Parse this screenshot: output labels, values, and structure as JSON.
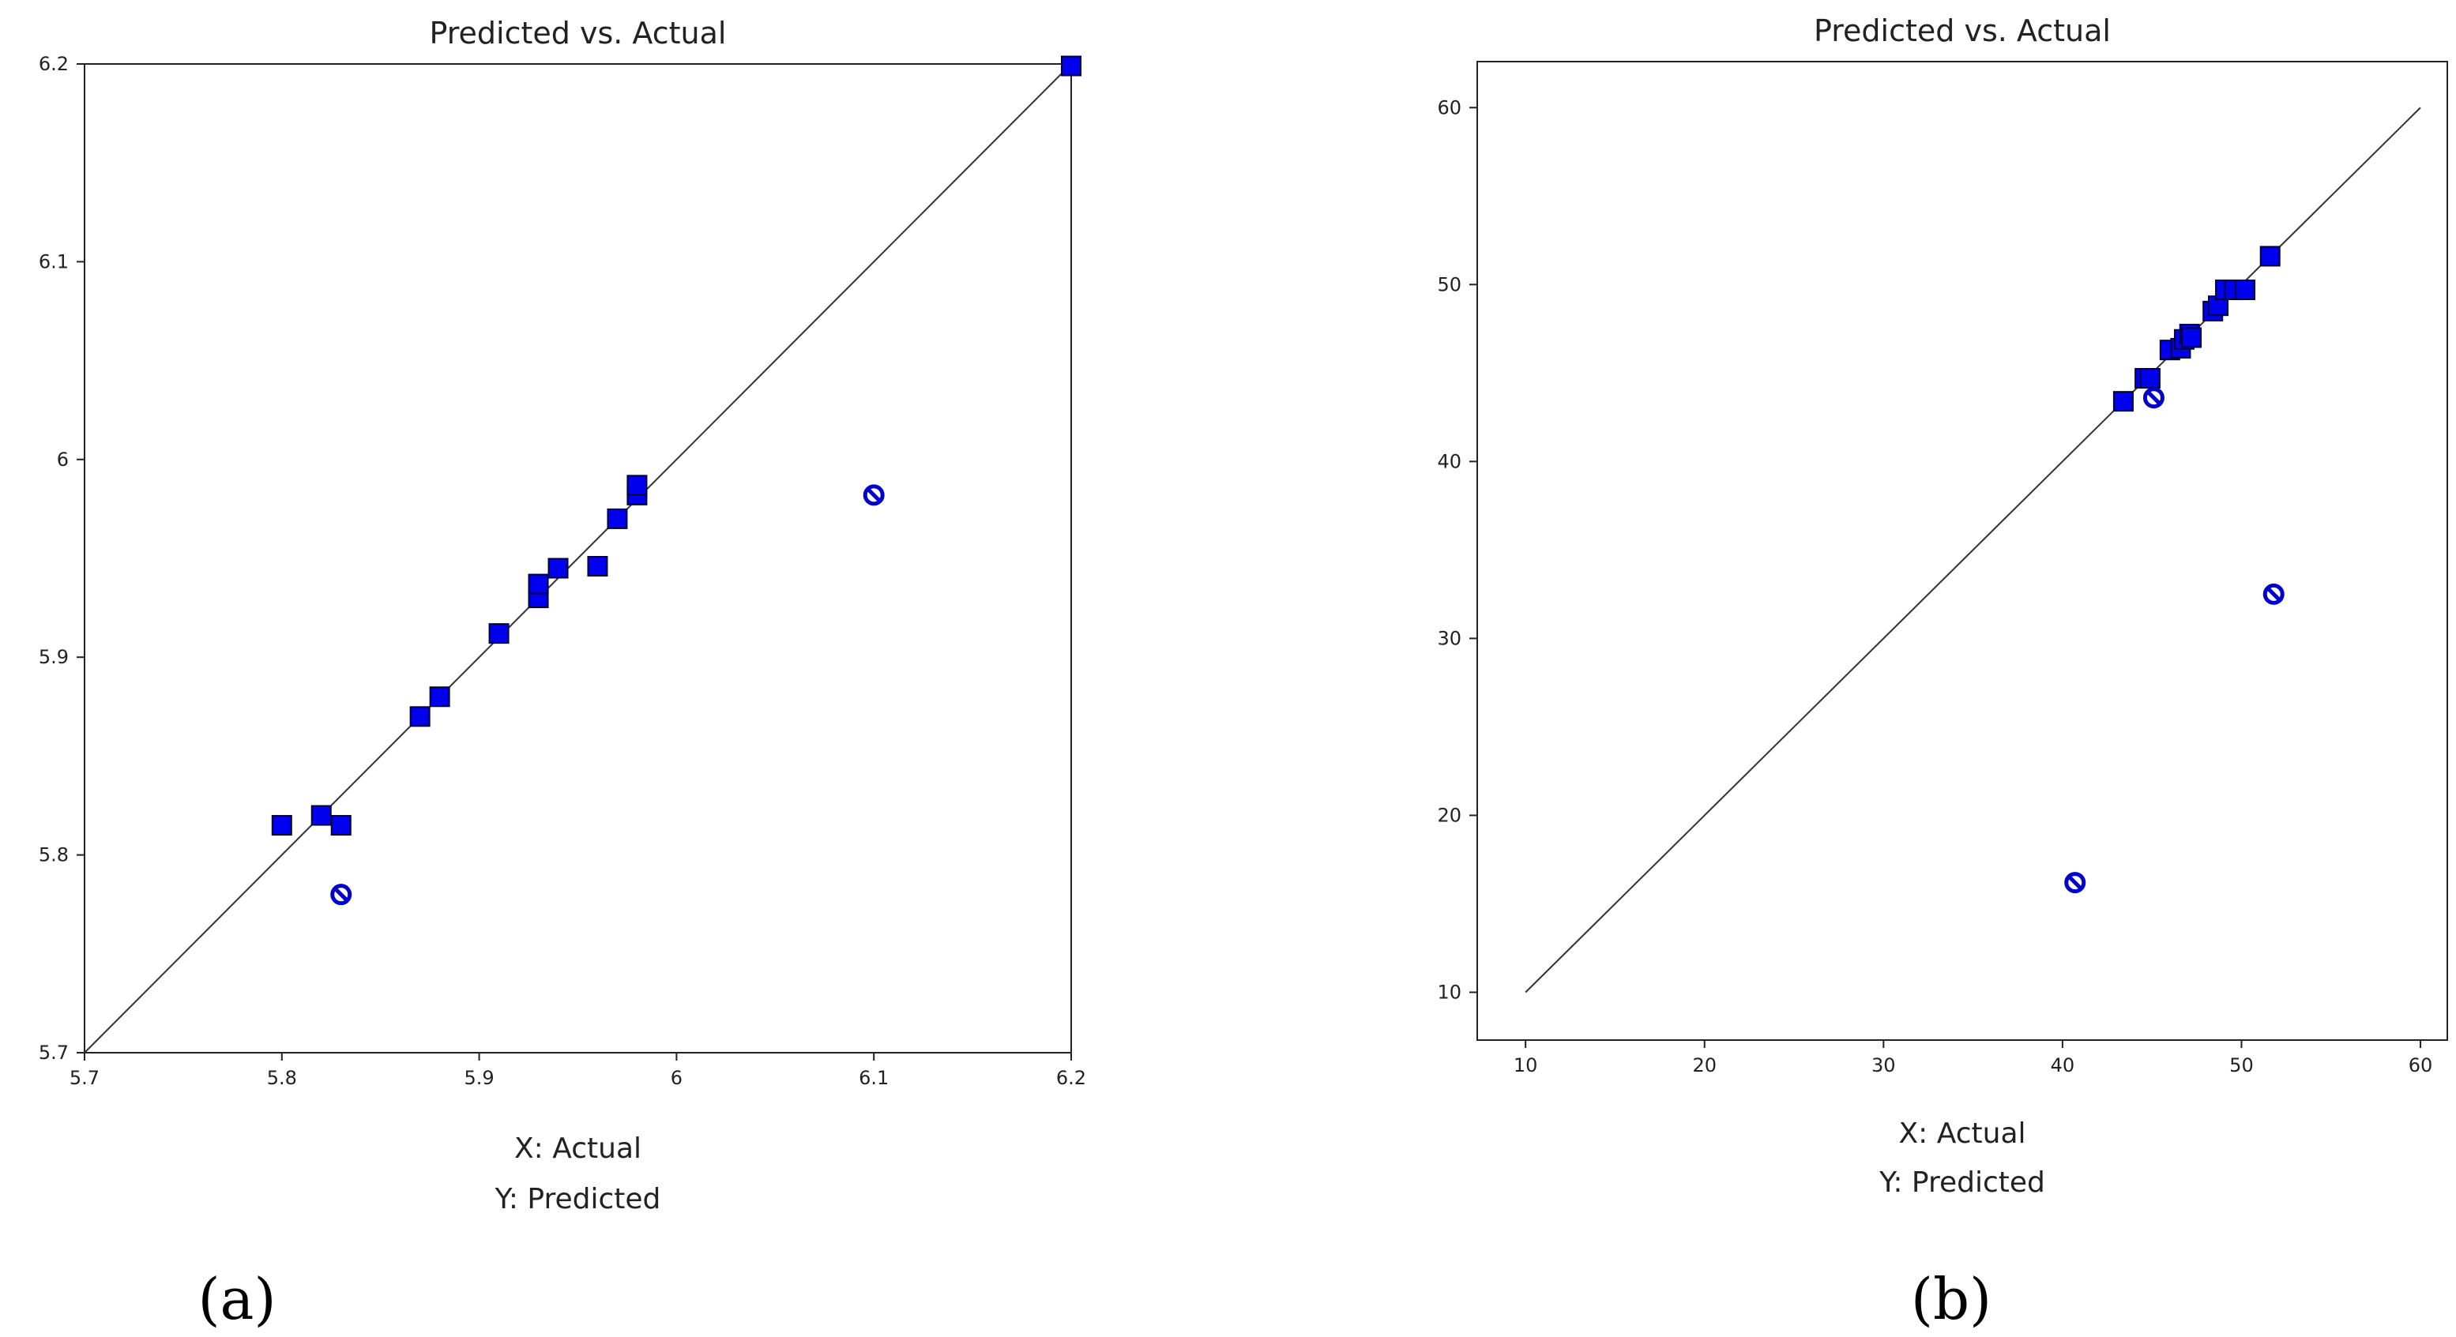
{
  "chart_data": [
    {
      "panel": "(a)",
      "type": "scatter",
      "title": "Predicted vs. Actual",
      "xlabel": "X: Actual",
      "ylabel": "Y: Predicted",
      "xlim": [
        5.7,
        6.2
      ],
      "ylim": [
        5.7,
        6.2
      ],
      "xticks": [
        "5.7",
        "5.8",
        "5.9",
        "6",
        "6.1",
        "6.2"
      ],
      "yticks": [
        "5.7",
        "5.8",
        "5.9",
        "6",
        "6.1",
        "6.2"
      ],
      "reference_line": [
        [
          5.7,
          5.7
        ],
        [
          6.2,
          6.2
        ]
      ],
      "series": [
        {
          "marker": "square",
          "color": "#0000ee",
          "points": [
            [
              5.8,
              5.815
            ],
            [
              5.82,
              5.82
            ],
            [
              5.83,
              5.815
            ],
            [
              5.87,
              5.87
            ],
            [
              5.88,
              5.88
            ],
            [
              5.91,
              5.912
            ],
            [
              5.93,
              5.93
            ],
            [
              5.93,
              5.937
            ],
            [
              5.94,
              5.945
            ],
            [
              5.96,
              5.946
            ],
            [
              5.97,
              5.97
            ],
            [
              5.98,
              5.982
            ],
            [
              5.98,
              5.987
            ],
            [
              6.2,
              6.199
            ]
          ]
        },
        {
          "marker": "circle-slash",
          "color": "#0000cc",
          "points": [
            [
              5.83,
              5.78
            ],
            [
              6.1,
              5.982
            ]
          ]
        }
      ]
    },
    {
      "panel": "(b)",
      "type": "scatter",
      "title": "Predicted vs. Actual",
      "xlabel": "X: Actual",
      "ylabel": "Y: Predicted",
      "xlim": [
        7.3,
        61.5
      ],
      "ylim": [
        7.3,
        62.6
      ],
      "xticks": [
        "10",
        "20",
        "30",
        "40",
        "50",
        "60"
      ],
      "yticks": [
        "10",
        "20",
        "30",
        "40",
        "50",
        "60"
      ],
      "reference_line": [
        [
          10,
          10
        ],
        [
          60,
          60
        ]
      ],
      "series": [
        {
          "marker": "square",
          "color": "#0000ee",
          "points": [
            [
              43.4,
              43.4
            ],
            [
              44.6,
              44.7
            ],
            [
              44.9,
              44.7
            ],
            [
              46.0,
              46.3
            ],
            [
              46.6,
              46.4
            ],
            [
              46.8,
              46.9
            ],
            [
              47.1,
              47.2
            ],
            [
              47.2,
              47.0
            ],
            [
              48.4,
              48.5
            ],
            [
              48.7,
              48.8
            ],
            [
              49.1,
              49.7
            ],
            [
              49.6,
              49.7
            ],
            [
              50.2,
              49.7
            ],
            [
              51.6,
              51.6
            ]
          ]
        },
        {
          "marker": "circle-slash",
          "color": "#0000cc",
          "points": [
            [
              45.1,
              43.6
            ],
            [
              51.8,
              32.5
            ],
            [
              40.7,
              16.2
            ]
          ]
        }
      ]
    }
  ]
}
